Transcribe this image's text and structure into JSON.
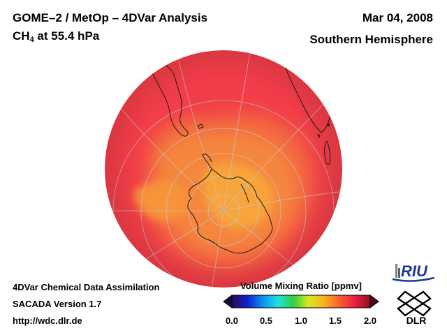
{
  "header": {
    "title_main": "GOME–2 / MetOp – 4DVar Analysis",
    "species_prefix": "CH",
    "species_sub": "4",
    "species_suffix": " at 55.4 hPa",
    "date": "Mar 04, 2008",
    "region": "Southern Hemisphere"
  },
  "footer": {
    "line1": "4DVar Chemical Data Assimilation",
    "line2": "SACADA Version 1.7",
    "line3": "http://wdc.dlr.de"
  },
  "colorbar": {
    "title": "Volume Mixing Ratio [ppmv]",
    "ticks": [
      "0.0",
      "0.5",
      "1.0",
      "1.5",
      "2.0"
    ],
    "range": [
      0.0,
      2.0
    ],
    "stops": [
      "#2a0a5a",
      "#1020c8",
      "#0a90f0",
      "#20e0e0",
      "#30d040",
      "#d8e820",
      "#f8b020",
      "#f86030",
      "#e82040",
      "#901020"
    ],
    "end_colors": [
      "#1a0840",
      "#4a0818"
    ]
  },
  "logos": {
    "riu": "RIU",
    "dlr": "DLR"
  },
  "map": {
    "projection": "orthographic",
    "center": "South Pole",
    "background_color": "#f23d48"
  }
}
